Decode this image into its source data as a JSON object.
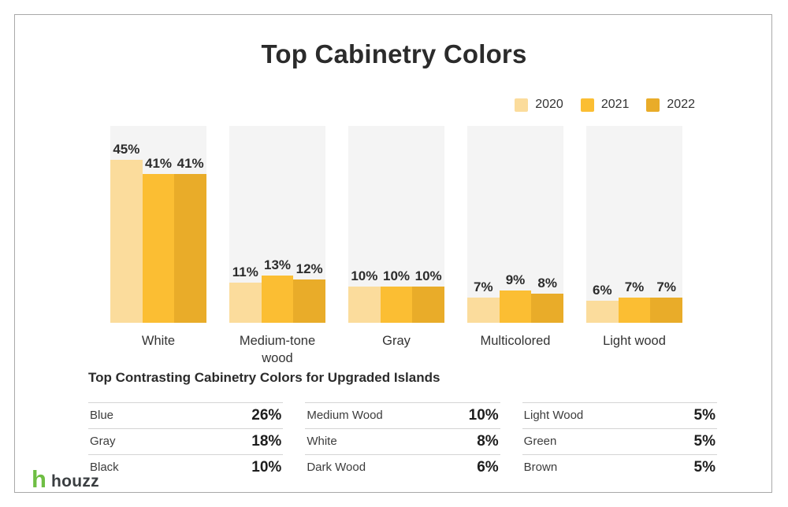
{
  "title": "Top Cabinetry Colors",
  "chart_data": {
    "type": "bar",
    "categories": [
      "White",
      "Medium-tone wood",
      "Gray",
      "Multicolored",
      "Light wood"
    ],
    "series": [
      {
        "name": "2020",
        "color": "#FBDC9C",
        "values": [
          45,
          11,
          10,
          7,
          6
        ]
      },
      {
        "name": "2021",
        "color": "#FBBE33",
        "values": [
          41,
          13,
          10,
          9,
          7
        ]
      },
      {
        "name": "2022",
        "color": "#E9AC29",
        "values": [
          41,
          12,
          10,
          8,
          7
        ]
      }
    ],
    "value_suffix": "%",
    "ylim": [
      0,
      54
    ],
    "grid": false,
    "legend_position": "top-right",
    "column_background": "#f4f4f4",
    "title": "Top Cabinetry Colors",
    "xlabel": "",
    "ylabel": ""
  },
  "table": {
    "title": "Top Contrasting Cabinetry Colors for Upgraded Islands",
    "columns": [
      {
        "rows": [
          {
            "label": "Blue",
            "value": "26%"
          },
          {
            "label": "Gray",
            "value": "18%"
          },
          {
            "label": "Black",
            "value": "10%"
          }
        ]
      },
      {
        "rows": [
          {
            "label": "Medium Wood",
            "value": "10%"
          },
          {
            "label": "White",
            "value": "8%"
          },
          {
            "label": "Dark Wood",
            "value": "6%"
          }
        ]
      },
      {
        "rows": [
          {
            "label": "Light Wood",
            "value": "5%"
          },
          {
            "label": "Green",
            "value": "5%"
          },
          {
            "label": "Brown",
            "value": "5%"
          }
        ]
      }
    ]
  },
  "brand": {
    "logo_icon": "h",
    "logo_text": "houzz",
    "logo_color": "#6FBE44"
  }
}
